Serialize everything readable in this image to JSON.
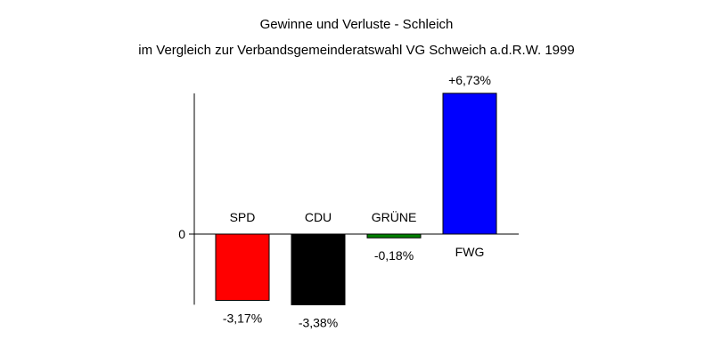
{
  "chart_data": {
    "type": "bar",
    "title": "Gewinne und Verluste - Schleich",
    "subtitle": "im Vergleich zur Verbandsgemeinderatswahl VG Schweich a.d.R.W. 1999",
    "categories": [
      "SPD",
      "CDU",
      "GRÜNE",
      "FWG"
    ],
    "values": [
      -3.17,
      -3.38,
      -0.18,
      6.73
    ],
    "value_labels": [
      "-3,17%",
      "-3,38%",
      "-0,18%",
      "+6,73%"
    ],
    "colors": [
      "#ff0000",
      "#000000",
      "#008000",
      "#0000ff"
    ],
    "y_tick_labels": [
      "0"
    ],
    "ylim": [
      -3.38,
      6.73
    ],
    "grid": false,
    "legend": "none",
    "xlabel": "",
    "ylabel": ""
  }
}
